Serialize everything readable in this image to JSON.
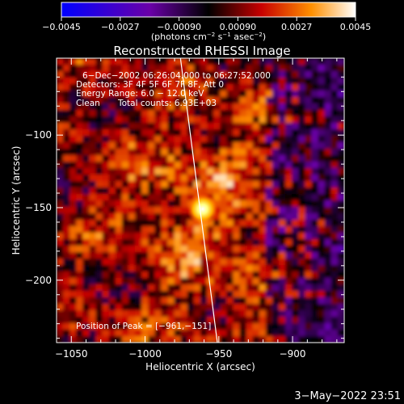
{
  "chart_data": {
    "type": "heatmap",
    "title": "Reconstructed RHESSI Image",
    "xlabel": "Heliocentric X (arcsec)",
    "ylabel": "Heliocentric Y (arcsec)",
    "xlim": [
      -1060,
      -865
    ],
    "ylim": [
      -243,
      -47
    ],
    "x_ticks": [
      -1050,
      -1000,
      -950,
      -900
    ],
    "x_tick_labels": [
      "−1050",
      "−1000",
      "−950",
      "−900"
    ],
    "y_ticks": [
      -100,
      -150,
      -200
    ],
    "y_tick_labels": [
      "−100",
      "−150",
      "−200"
    ],
    "colorbar": {
      "min": -0.0045,
      "max": 0.0045,
      "ticks": [
        -0.0045,
        -0.0027,
        -0.0009,
        0.0009,
        0.0027,
        0.0045
      ],
      "tick_labels": [
        "−0.0045",
        "−0.0027",
        "−0.00090",
        "0.00090",
        "0.0027",
        "0.0045"
      ],
      "units_prefix": "(photons cm",
      "units_exp1": "−2",
      "units_mid1": " s",
      "units_exp2": "−1",
      "units_mid2": " asec",
      "units_exp3": "−2",
      "units_suffix": ")"
    },
    "annotations": {
      "time_range": "6−Dec−2002 06:26:04.000 to 06:27:52.000",
      "detectors": "Detectors: 3F 4F 5F 6F 7F 8F, Att 0",
      "energy": "Energy Range: 6.0 − 12.0 keV",
      "method": "Clean",
      "counts": "Total counts: 6.93E+03",
      "peak": "Position of Peak = [−961,−151]"
    },
    "peak": {
      "x": -961,
      "y": -151
    },
    "limb_line": [
      [
        -976,
        -47
      ],
      [
        -951,
        -243
      ]
    ],
    "footer_date": "3−May−2022 23:51"
  }
}
